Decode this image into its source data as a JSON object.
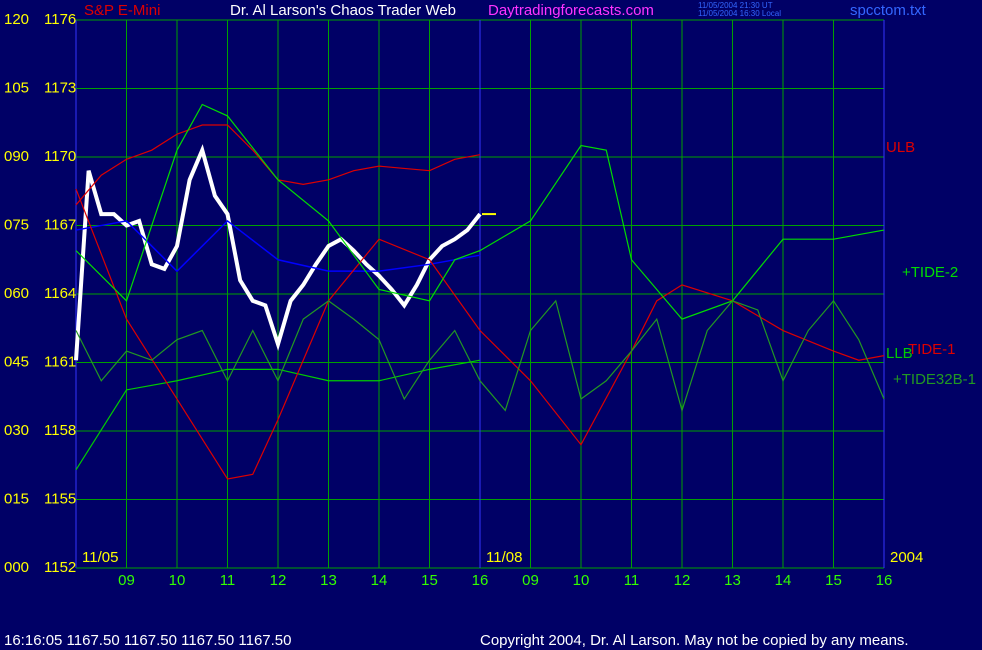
{
  "chart_data": {
    "type": "line",
    "title": "Dr. Al Larson's Chaos Trader Web",
    "subtitle": "S&P E-Mini",
    "site": "Daytradingforecasts.com",
    "timestamp_ut": "11/05/2004 21:30 UT",
    "timestamp_local": "11/05/2004 16:30 Local",
    "file_name": "spcctom.txt",
    "status_text": "16:16:05  1167.50 1167.50 1167.50 1167.50",
    "copyright": "Copyright 2004, Dr. Al Larson. May not be copied by any means.",
    "xlim": [
      0,
      16
    ],
    "xticks": [
      {
        "value": 1,
        "label": "09"
      },
      {
        "value": 2,
        "label": "10"
      },
      {
        "value": 3,
        "label": "11"
      },
      {
        "value": 4,
        "label": "12"
      },
      {
        "value": 5,
        "label": "13"
      },
      {
        "value": 6,
        "label": "14"
      },
      {
        "value": 7,
        "label": "15"
      },
      {
        "value": 8,
        "label": "16"
      },
      {
        "value": 9,
        "label": "09"
      },
      {
        "value": 10,
        "label": "10"
      },
      {
        "value": 11,
        "label": "11"
      },
      {
        "value": 12,
        "label": "12"
      },
      {
        "value": 13,
        "label": "13"
      },
      {
        "value": 14,
        "label": "14"
      },
      {
        "value": 15,
        "label": "15"
      },
      {
        "value": 16,
        "label": "16"
      }
    ],
    "date_labels": [
      {
        "x": 0,
        "label": "11/05"
      },
      {
        "x": 8,
        "label": "11/08"
      },
      {
        "x": 16,
        "label": "2004"
      }
    ],
    "ylim": [
      1152,
      1176
    ],
    "yticks": [
      1152,
      1155,
      1158,
      1161,
      1164,
      1167,
      1170,
      1173,
      1176
    ],
    "y2lim": [
      0,
      120
    ],
    "y2ticks": [
      {
        "value": 0,
        "label": "000"
      },
      {
        "value": 15,
        "label": "015"
      },
      {
        "value": 30,
        "label": "030"
      },
      {
        "value": 45,
        "label": "045"
      },
      {
        "value": 60,
        "label": "060"
      },
      {
        "value": 75,
        "label": "075"
      },
      {
        "value": 90,
        "label": "090"
      },
      105,
      120
    ],
    "grid": true,
    "last_price": 1167.5,
    "series": [
      {
        "color": "#ffffff",
        "x": [
          0,
          0.25,
          0.5,
          0.75,
          1,
          1.25,
          1.5,
          1.75,
          2,
          2.25,
          2.5,
          2.75,
          3,
          3.25,
          3.5,
          3.75,
          4,
          4.25,
          4.5,
          4.75,
          5,
          5.25,
          5.5,
          5.75,
          6,
          6.25,
          6.5,
          6.75,
          7,
          7.25,
          7.5,
          7.75,
          8
        ],
        "values": [
          1161.1,
          1169.4,
          1167.5,
          1167.5,
          1167.0,
          1167.2,
          1165.3,
          1165.1,
          1166.1,
          1169.0,
          1170.3,
          1168.3,
          1167.5,
          1164.6,
          1163.7,
          1163.5,
          1161.8,
          1163.7,
          1164.4,
          1165.3,
          1166.1,
          1166.4,
          1165.9,
          1165.3,
          1164.8,
          1164.2,
          1163.5,
          1164.4,
          1165.5,
          1166.1,
          1166.4,
          1166.8,
          1167.5
        ]
      },
      {
        "color": "#0000ff",
        "x": [
          0,
          1,
          2,
          3,
          4,
          5,
          6,
          7,
          8
        ],
        "values": [
          1166.8,
          1167.2,
          1165.0,
          1167.2,
          1165.5,
          1165.0,
          1165.0,
          1165.3,
          1165.7
        ]
      },
      {
        "name": "ULB",
        "color": "#dd0000",
        "x": [
          0,
          0.5,
          1,
          1.5,
          2,
          2.5,
          3,
          3.5,
          4,
          4.5,
          5,
          5.5,
          6,
          6.5,
          7,
          7.5,
          8
        ],
        "values": [
          1167.9,
          1169.2,
          1169.9,
          1170.3,
          1171.0,
          1171.4,
          1171.4,
          1170.3,
          1169.0,
          1168.8,
          1169.0,
          1169.4,
          1169.6,
          1169.5,
          1169.4,
          1169.9,
          1170.1
        ]
      },
      {
        "name": "LLB",
        "color": "#00cc00",
        "x": [
          0,
          1,
          2,
          3,
          4,
          5,
          6,
          7,
          8
        ],
        "values": [
          1156.3,
          1159.8,
          1160.2,
          1160.7,
          1160.7,
          1160.2,
          1160.2,
          1160.7,
          1161.1
        ]
      },
      {
        "name": "TIDE-1",
        "color": "#dd0000",
        "x": [
          0,
          1,
          2,
          3,
          3.5,
          4,
          5,
          6,
          7,
          8,
          9,
          10,
          11,
          11.5,
          12,
          13,
          14,
          15,
          15.5,
          16
        ],
        "values": [
          1168.6,
          1162.9,
          1159.4,
          1155.9,
          1156.1,
          1158.5,
          1163.7,
          1166.4,
          1165.5,
          1162.4,
          1160.2,
          1157.4,
          1161.5,
          1163.7,
          1164.4,
          1163.7,
          1162.4,
          1161.5,
          1161.1,
          1161.3
        ]
      },
      {
        "name": "+TIDE-2",
        "color": "#00dd00",
        "x": [
          0,
          1,
          2,
          2.5,
          3,
          4,
          5,
          6,
          7,
          7.5,
          8,
          9,
          10,
          10.5,
          11,
          12,
          13,
          14,
          15,
          16
        ],
        "values": [
          1165.9,
          1163.7,
          1170.3,
          1172.3,
          1171.8,
          1169.0,
          1167.2,
          1164.2,
          1163.7,
          1165.5,
          1165.9,
          1167.2,
          1170.5,
          1170.3,
          1165.5,
          1162.9,
          1163.7,
          1166.4,
          1166.4,
          1166.8
        ]
      },
      {
        "name": "+TIDE32B-1",
        "color": "#229922",
        "x": [
          0,
          0.5,
          1,
          1.5,
          2,
          2.5,
          3,
          3.5,
          4,
          4.5,
          5,
          5.5,
          6,
          6.5,
          7,
          7.5,
          8,
          8.5,
          9,
          9.5,
          10,
          10.5,
          11,
          11.5,
          12,
          12.5,
          13,
          13.5,
          14,
          14.5,
          15,
          15.5,
          16
        ],
        "values": [
          1162.4,
          1160.2,
          1161.5,
          1161.1,
          1162.0,
          1162.4,
          1160.2,
          1162.4,
          1160.2,
          1162.9,
          1163.7,
          1162.9,
          1162.0,
          1159.4,
          1161.1,
          1162.4,
          1160.2,
          1158.9,
          1162.4,
          1163.7,
          1159.4,
          1160.2,
          1161.5,
          1162.9,
          1158.9,
          1162.4,
          1163.7,
          1163.3,
          1160.2,
          1162.4,
          1163.7,
          1162.0,
          1159.4
        ]
      }
    ]
  }
}
